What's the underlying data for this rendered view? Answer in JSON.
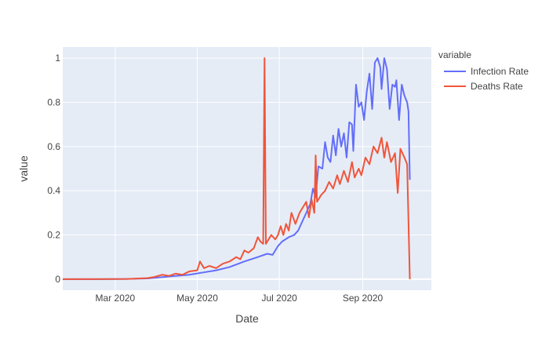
{
  "chart_data": {
    "type": "line",
    "xlabel": "Date",
    "ylabel": "value",
    "xlim": [
      "2020-01-22",
      "2020-10-22"
    ],
    "ylim": [
      -0.05,
      1.05
    ],
    "x_ticks": [
      {
        "date": "2020-03-01",
        "label": "Mar 2020"
      },
      {
        "date": "2020-05-01",
        "label": "May 2020"
      },
      {
        "date": "2020-07-01",
        "label": "Jul 2020"
      },
      {
        "date": "2020-09-01",
        "label": "Sep 2020"
      }
    ],
    "y_ticks": [
      0,
      0.2,
      0.4,
      0.6,
      0.8,
      1
    ],
    "y_tick_labels": [
      "0",
      "0.2",
      "0.4",
      "0.6",
      "0.8",
      "1"
    ],
    "grid": true,
    "plot_background": "#e5ecf6",
    "legend": {
      "title": "variable",
      "placement": "right"
    },
    "series": [
      {
        "name": "Infection Rate",
        "color": "#636efa",
        "points": [
          [
            "2020-01-22",
            0.0
          ],
          [
            "2020-02-15",
            0.0
          ],
          [
            "2020-03-10",
            0.001
          ],
          [
            "2020-03-25",
            0.003
          ],
          [
            "2020-04-10",
            0.012
          ],
          [
            "2020-04-25",
            0.02
          ],
          [
            "2020-05-05",
            0.03
          ],
          [
            "2020-05-15",
            0.04
          ],
          [
            "2020-05-25",
            0.055
          ],
          [
            "2020-06-05",
            0.08
          ],
          [
            "2020-06-15",
            0.1
          ],
          [
            "2020-06-22",
            0.115
          ],
          [
            "2020-06-26",
            0.11
          ],
          [
            "2020-06-30",
            0.15
          ],
          [
            "2020-07-03",
            0.17
          ],
          [
            "2020-07-08",
            0.19
          ],
          [
            "2020-07-12",
            0.2
          ],
          [
            "2020-07-15",
            0.22
          ],
          [
            "2020-07-18",
            0.26
          ],
          [
            "2020-07-21",
            0.3
          ],
          [
            "2020-07-24",
            0.34
          ],
          [
            "2020-07-26",
            0.41
          ],
          [
            "2020-07-28",
            0.37
          ],
          [
            "2020-07-30",
            0.51
          ],
          [
            "2020-08-02",
            0.5
          ],
          [
            "2020-08-04",
            0.62
          ],
          [
            "2020-08-06",
            0.55
          ],
          [
            "2020-08-08",
            0.53
          ],
          [
            "2020-08-10",
            0.65
          ],
          [
            "2020-08-12",
            0.56
          ],
          [
            "2020-08-14",
            0.68
          ],
          [
            "2020-08-16",
            0.6
          ],
          [
            "2020-08-18",
            0.66
          ],
          [
            "2020-08-20",
            0.55
          ],
          [
            "2020-08-22",
            0.71
          ],
          [
            "2020-08-24",
            0.7
          ],
          [
            "2020-08-25",
            0.58
          ],
          [
            "2020-08-27",
            0.88
          ],
          [
            "2020-08-29",
            0.78
          ],
          [
            "2020-08-31",
            0.8
          ],
          [
            "2020-09-02",
            0.72
          ],
          [
            "2020-09-04",
            0.85
          ],
          [
            "2020-09-06",
            0.93
          ],
          [
            "2020-09-08",
            0.77
          ],
          [
            "2020-09-10",
            0.98
          ],
          [
            "2020-09-12",
            1.0
          ],
          [
            "2020-09-14",
            0.96
          ],
          [
            "2020-09-15",
            0.86
          ],
          [
            "2020-09-17",
            1.0
          ],
          [
            "2020-09-19",
            0.95
          ],
          [
            "2020-09-21",
            0.77
          ],
          [
            "2020-09-23",
            0.88
          ],
          [
            "2020-09-25",
            0.87
          ],
          [
            "2020-09-26",
            0.9
          ],
          [
            "2020-09-28",
            0.72
          ],
          [
            "2020-09-30",
            0.88
          ],
          [
            "2020-10-02",
            0.83
          ],
          [
            "2020-10-04",
            0.8
          ],
          [
            "2020-10-05",
            0.76
          ],
          [
            "2020-10-06",
            0.45
          ]
        ]
      },
      {
        "name": "Deaths Rate",
        "color": "#ef553b",
        "points": [
          [
            "2020-01-22",
            0.0
          ],
          [
            "2020-03-10",
            0.001
          ],
          [
            "2020-03-25",
            0.005
          ],
          [
            "2020-03-30",
            0.01
          ],
          [
            "2020-04-05",
            0.02
          ],
          [
            "2020-04-10",
            0.015
          ],
          [
            "2020-04-15",
            0.025
          ],
          [
            "2020-04-20",
            0.02
          ],
          [
            "2020-04-25",
            0.035
          ],
          [
            "2020-05-01",
            0.04
          ],
          [
            "2020-05-03",
            0.08
          ],
          [
            "2020-05-06",
            0.05
          ],
          [
            "2020-05-10",
            0.06
          ],
          [
            "2020-05-15",
            0.05
          ],
          [
            "2020-05-20",
            0.07
          ],
          [
            "2020-05-25",
            0.08
          ],
          [
            "2020-05-30",
            0.1
          ],
          [
            "2020-06-02",
            0.09
          ],
          [
            "2020-06-05",
            0.13
          ],
          [
            "2020-06-08",
            0.12
          ],
          [
            "2020-06-12",
            0.14
          ],
          [
            "2020-06-15",
            0.19
          ],
          [
            "2020-06-17",
            0.17
          ],
          [
            "2020-06-19",
            0.16
          ],
          [
            "2020-06-20",
            1.0
          ],
          [
            "2020-06-21",
            0.16
          ],
          [
            "2020-06-23",
            0.18
          ],
          [
            "2020-06-25",
            0.2
          ],
          [
            "2020-06-28",
            0.18
          ],
          [
            "2020-06-30",
            0.2
          ],
          [
            "2020-07-02",
            0.24
          ],
          [
            "2020-07-04",
            0.2
          ],
          [
            "2020-07-06",
            0.25
          ],
          [
            "2020-07-08",
            0.22
          ],
          [
            "2020-07-10",
            0.3
          ],
          [
            "2020-07-13",
            0.25
          ],
          [
            "2020-07-16",
            0.3
          ],
          [
            "2020-07-19",
            0.33
          ],
          [
            "2020-07-21",
            0.35
          ],
          [
            "2020-07-23",
            0.28
          ],
          [
            "2020-07-25",
            0.36
          ],
          [
            "2020-07-27",
            0.3
          ],
          [
            "2020-07-28",
            0.56
          ],
          [
            "2020-07-29",
            0.35
          ],
          [
            "2020-08-01",
            0.38
          ],
          [
            "2020-08-04",
            0.4
          ],
          [
            "2020-08-07",
            0.44
          ],
          [
            "2020-08-10",
            0.41
          ],
          [
            "2020-08-13",
            0.47
          ],
          [
            "2020-08-15",
            0.43
          ],
          [
            "2020-08-18",
            0.49
          ],
          [
            "2020-08-21",
            0.44
          ],
          [
            "2020-08-24",
            0.53
          ],
          [
            "2020-08-26",
            0.46
          ],
          [
            "2020-08-29",
            0.5
          ],
          [
            "2020-08-31",
            0.47
          ],
          [
            "2020-09-03",
            0.55
          ],
          [
            "2020-09-06",
            0.52
          ],
          [
            "2020-09-09",
            0.6
          ],
          [
            "2020-09-12",
            0.57
          ],
          [
            "2020-09-15",
            0.64
          ],
          [
            "2020-09-17",
            0.55
          ],
          [
            "2020-09-19",
            0.62
          ],
          [
            "2020-09-22",
            0.53
          ],
          [
            "2020-09-25",
            0.57
          ],
          [
            "2020-09-27",
            0.39
          ],
          [
            "2020-09-29",
            0.59
          ],
          [
            "2020-10-02",
            0.55
          ],
          [
            "2020-10-04",
            0.52
          ],
          [
            "2020-10-06",
            0.0
          ]
        ]
      }
    ]
  }
}
